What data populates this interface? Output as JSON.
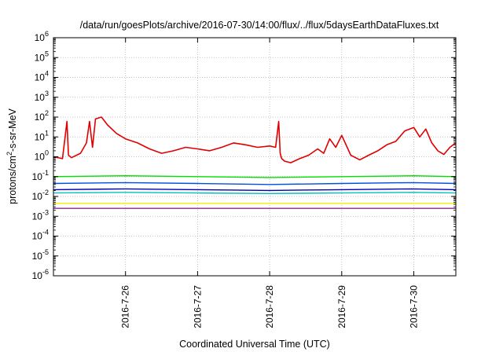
{
  "chart_data": {
    "type": "line",
    "title": "/data/run/goesPlots/archive/2016-07-30/14:00/flux/../flux/5daysEarthDataFluxes.txt",
    "xlabel": "Coordinated Universal Time (UTC)",
    "ylabel": "protons/cm²-s-sr-MeV",
    "ylabel_parts": {
      "pre": "protons/cm",
      "sup": "2",
      "post": "-s-sr-MeV"
    },
    "y_scale": "log",
    "ylim": [
      1e-06,
      1000000.0
    ],
    "y_ticks": [
      {
        "base": "10",
        "exp": "-6"
      },
      {
        "base": "10",
        "exp": "-5"
      },
      {
        "base": "10",
        "exp": "-4"
      },
      {
        "base": "10",
        "exp": "-3"
      },
      {
        "base": "10",
        "exp": "-2"
      },
      {
        "base": "10",
        "exp": "-1"
      },
      {
        "base": "10",
        "exp": "0"
      },
      {
        "base": "10",
        "exp": "1"
      },
      {
        "base": "10",
        "exp": "2"
      },
      {
        "base": "10",
        "exp": "3"
      },
      {
        "base": "10",
        "exp": "4"
      },
      {
        "base": "10",
        "exp": "5"
      },
      {
        "base": "10",
        "exp": "6"
      }
    ],
    "xlim": [
      "2016-07-25T00:00",
      "2016-07-30T14:00"
    ],
    "x_ticks": [
      "2016-7-26",
      "2016-7-27",
      "2016-7-28",
      "2016-7-29",
      "2016-7-30"
    ],
    "grid": true,
    "series": [
      {
        "color": "#e00000",
        "x": [
          "2016-07-25T00:00",
          "2016-07-25T03:00",
          "2016-07-25T04:30",
          "2016-07-25T05:00",
          "2016-07-25T06:00",
          "2016-07-25T09:00",
          "2016-07-25T11:00",
          "2016-07-25T12:00",
          "2016-07-25T13:00",
          "2016-07-25T14:00",
          "2016-07-25T16:00",
          "2016-07-25T18:00",
          "2016-07-25T21:00",
          "2016-07-26T00:00",
          "2016-07-26T04:00",
          "2016-07-26T08:00",
          "2016-07-26T12:00",
          "2016-07-26T16:00",
          "2016-07-26T20:00",
          "2016-07-27T00:00",
          "2016-07-27T04:00",
          "2016-07-27T08:00",
          "2016-07-27T12:00",
          "2016-07-27T16:00",
          "2016-07-27T20:00",
          "2016-07-28T00:00",
          "2016-07-28T02:00",
          "2016-07-28T03:00",
          "2016-07-28T03:30",
          "2016-07-28T04:00",
          "2016-07-28T05:00",
          "2016-07-28T07:00",
          "2016-07-28T10:00",
          "2016-07-28T13:00",
          "2016-07-28T16:00",
          "2016-07-28T18:00",
          "2016-07-28T20:00",
          "2016-07-28T22:00",
          "2016-07-29T00:00",
          "2016-07-29T03:00",
          "2016-07-29T06:00",
          "2016-07-29T09:00",
          "2016-07-29T12:00",
          "2016-07-29T15:00",
          "2016-07-29T18:00",
          "2016-07-29T21:00",
          "2016-07-30T00:00",
          "2016-07-30T02:00",
          "2016-07-30T04:00",
          "2016-07-30T06:00",
          "2016-07-30T08:00",
          "2016-07-30T10:00",
          "2016-07-30T12:00",
          "2016-07-30T14:00"
        ],
        "y": [
          1,
          0.8,
          60,
          1.2,
          0.9,
          1.5,
          5,
          60,
          3,
          80,
          100,
          40,
          15,
          8,
          5,
          2.5,
          1.5,
          2,
          3,
          2.5,
          2,
          3,
          5,
          4,
          3,
          3.5,
          3,
          60,
          1.5,
          0.8,
          0.6,
          0.5,
          0.8,
          1.2,
          2.5,
          1.5,
          8,
          3,
          12,
          1.2,
          0.7,
          1.2,
          2,
          4,
          6,
          20,
          30,
          10,
          25,
          5,
          2,
          1.3,
          3,
          5
        ]
      },
      {
        "color": "#00e000",
        "x": [
          "2016-07-25T00:00",
          "2016-07-26T00:00",
          "2016-07-27T00:00",
          "2016-07-28T00:00",
          "2016-07-29T00:00",
          "2016-07-30T00:00",
          "2016-07-30T14:00"
        ],
        "y": [
          0.1,
          0.11,
          0.1,
          0.09,
          0.1,
          0.11,
          0.1
        ]
      },
      {
        "color": "#0050e0",
        "x": [
          "2016-07-25T00:00",
          "2016-07-26T00:00",
          "2016-07-27T00:00",
          "2016-07-28T00:00",
          "2016-07-29T00:00",
          "2016-07-30T00:00",
          "2016-07-30T14:00"
        ],
        "y": [
          0.045,
          0.05,
          0.045,
          0.04,
          0.045,
          0.05,
          0.045
        ]
      },
      {
        "color": "#00c0c0",
        "x": [
          "2016-07-25T00:00",
          "2016-07-26T00:00",
          "2016-07-27T00:00",
          "2016-07-28T00:00",
          "2016-07-29T00:00",
          "2016-07-30T00:00",
          "2016-07-30T14:00"
        ],
        "y": [
          0.015,
          0.016,
          0.015,
          0.014,
          0.015,
          0.016,
          0.015
        ]
      },
      {
        "color": "#0000b0",
        "x": [
          "2016-07-25T00:00",
          "2016-07-26T00:00",
          "2016-07-27T00:00",
          "2016-07-28T00:00",
          "2016-07-29T00:00",
          "2016-07-30T00:00",
          "2016-07-30T14:00"
        ],
        "y": [
          0.022,
          0.024,
          0.022,
          0.02,
          0.022,
          0.024,
          0.022
        ]
      },
      {
        "color": "#f0f000",
        "x": [
          "2016-07-25T00:00",
          "2016-07-26T00:00",
          "2016-07-27T00:00",
          "2016-07-28T00:00",
          "2016-07-29T00:00",
          "2016-07-30T00:00",
          "2016-07-30T14:00"
        ],
        "y": [
          0.0045,
          0.0045,
          0.0045,
          0.0045,
          0.0045,
          0.0045,
          0.0045
        ]
      },
      {
        "color": "#8b2a8b",
        "x": [
          "2016-07-25T00:00",
          "2016-07-26T00:00",
          "2016-07-27T00:00",
          "2016-07-28T00:00",
          "2016-07-29T00:00",
          "2016-07-30T00:00",
          "2016-07-30T14:00"
        ],
        "y": [
          0.0025,
          0.0025,
          0.0025,
          0.0025,
          0.0025,
          0.0025,
          0.0025
        ]
      }
    ]
  }
}
